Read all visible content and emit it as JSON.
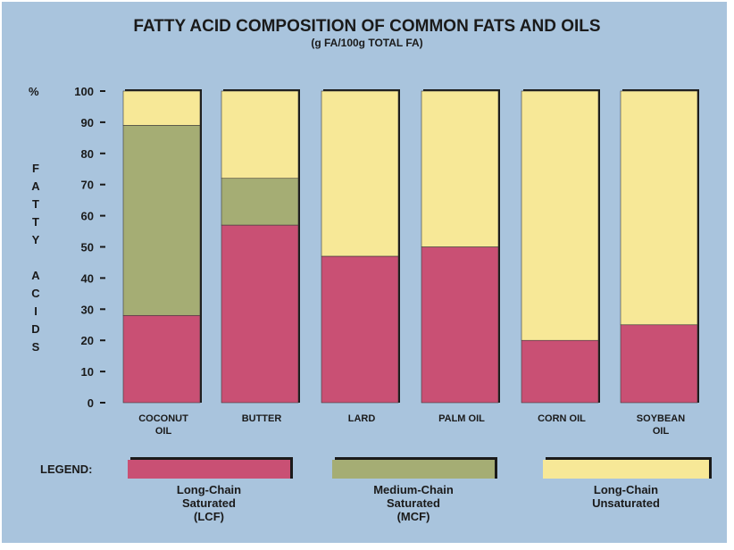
{
  "chart_data": {
    "type": "bar",
    "stacked": true,
    "title": "FATTY ACID COMPOSITION OF COMMON FATS AND OILS",
    "subtitle": "(g FA/100g TOTAL FA)",
    "ylabel": "FATTY ACIDS",
    "yunit": "%",
    "ylim": [
      0,
      100
    ],
    "yticks": [
      0,
      10,
      20,
      30,
      40,
      50,
      60,
      70,
      80,
      90,
      100
    ],
    "categories": [
      "COCONUT OIL",
      "BUTTER",
      "LARD",
      "PALM OIL",
      "CORN OIL",
      "SOYBEAN OIL"
    ],
    "category_lines": [
      [
        "COCONUT",
        "OIL"
      ],
      [
        "BUTTER"
      ],
      [
        "LARD"
      ],
      [
        "PALM OIL"
      ],
      [
        "CORN OIL"
      ],
      [
        "SOYBEAN",
        "OIL"
      ]
    ],
    "series": [
      {
        "name": "Long-Chain Saturated (LCF)",
        "color": "#c95074",
        "values": [
          28,
          57,
          47,
          50,
          20,
          25
        ]
      },
      {
        "name": "Medium-Chain Saturated (MCF)",
        "color": "#a5ad74",
        "values": [
          61,
          15,
          0,
          0,
          0,
          0
        ]
      },
      {
        "name": "Long-Chain Unsaturated",
        "color": "#f7e897",
        "values": [
          11,
          28,
          53,
          50,
          80,
          75
        ]
      }
    ],
    "legend": {
      "label": "LEGEND:",
      "placement": "bottom",
      "items": [
        {
          "lines": [
            "Long-Chain",
            "Saturated",
            "(LCF)"
          ]
        },
        {
          "lines": [
            "Medium-Chain",
            "Saturated",
            "(MCF)"
          ]
        },
        {
          "lines": [
            "Long-Chain",
            "Unsaturated"
          ]
        }
      ]
    },
    "grid": false
  }
}
